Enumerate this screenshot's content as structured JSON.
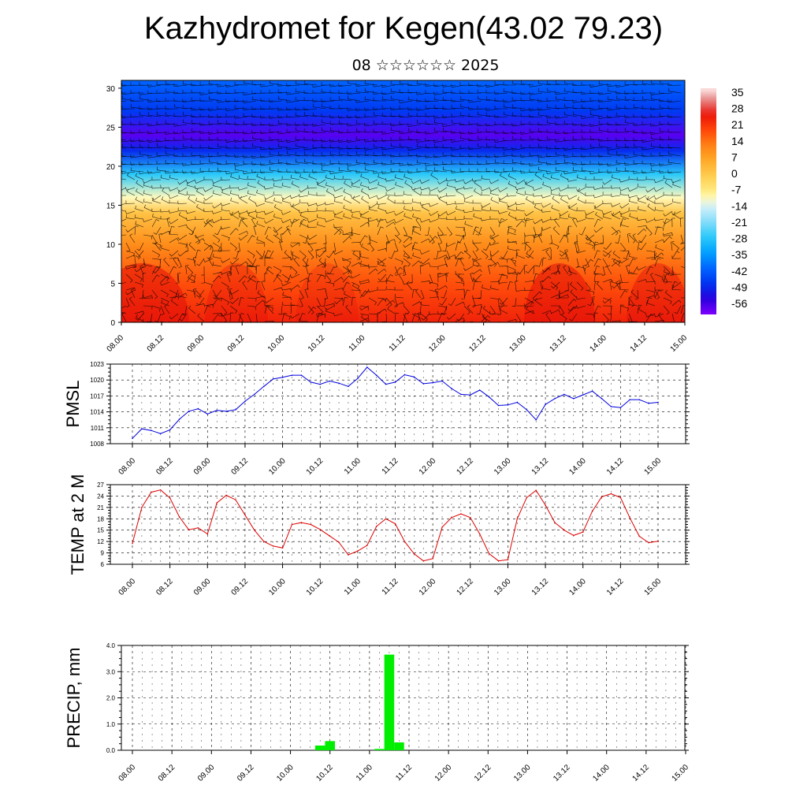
{
  "title": "Kazhydromet for Kegen(43.02 79.23)",
  "subtitle": "08 ☆☆☆☆☆☆ 2025",
  "colors": {
    "pmsl": "#0000dd",
    "temp": "#dd0000",
    "precip": "#00ee00"
  },
  "chart_data": [
    {
      "type": "heatmap",
      "name": "cross-section temperature with wind barbs",
      "x_ticks": [
        "08.00",
        "08.12",
        "09.00",
        "09.12",
        "10.00",
        "10.12",
        "11.00",
        "11.12",
        "12.00",
        "12.12",
        "13.00",
        "13.12",
        "14.00",
        "14.12",
        "15.00"
      ],
      "y_ticks": [
        "0",
        "5",
        "10",
        "15",
        "20",
        "25",
        "30"
      ],
      "ylim": [
        0,
        31
      ],
      "colorbar_labels": [
        "35",
        "28",
        "21",
        "14",
        "7",
        "0",
        "-7",
        "-14",
        "-21",
        "-28",
        "-35",
        "-42",
        "-49",
        "-56"
      ],
      "colorbar_range": [
        -63,
        40
      ],
      "temperature_profile": [
        {
          "level": 0,
          "value": 26
        },
        {
          "level": 5,
          "value": 20
        },
        {
          "level": 10,
          "value": 12
        },
        {
          "level": 14,
          "value": 2
        },
        {
          "level": 16,
          "value": -10
        },
        {
          "level": 19,
          "value": -28
        },
        {
          "level": 22,
          "value": -50
        },
        {
          "level": 24,
          "value": -60
        },
        {
          "level": 27,
          "value": -48
        },
        {
          "level": 31,
          "value": -42
        }
      ]
    },
    {
      "type": "line",
      "ylabel": "PMSL",
      "x_ticks": [
        "08.00",
        "08.12",
        "09.00",
        "09.12",
        "10.00",
        "10.12",
        "11.00",
        "11.12",
        "12.00",
        "12.12",
        "13.00",
        "13.12",
        "14.00",
        "14.12",
        "15.00"
      ],
      "y_ticks": [
        "1008",
        "1011",
        "1014",
        "1017",
        "1020",
        "1023"
      ],
      "ylim": [
        1008,
        1023
      ],
      "step_hours": 3,
      "values": [
        1009,
        1010.8,
        1010.5,
        1009.9,
        1010.6,
        1012.6,
        1014.1,
        1014.6,
        1013.6,
        1014.3,
        1014.1,
        1014.4,
        1016,
        1017.3,
        1018.8,
        1020.2,
        1020.5,
        1020.9,
        1020.9,
        1019.6,
        1019.2,
        1019.8,
        1019.4,
        1018.8,
        1020.3,
        1022.4,
        1020.9,
        1019.2,
        1019.6,
        1021,
        1020.6,
        1019.3,
        1019.5,
        1019.8,
        1018.4,
        1017.3,
        1017.2,
        1018.1,
        1016.8,
        1015.2,
        1015.3,
        1015.8,
        1014.4,
        1012.5,
        1015.4,
        1016.5,
        1017.3,
        1016.5,
        1017.2,
        1017.9,
        1016.5,
        1015,
        1014.8,
        1016.3,
        1016.3,
        1015.6,
        1015.8
      ]
    },
    {
      "type": "line",
      "ylabel": "TEMP at 2 M",
      "x_ticks": [
        "08.00",
        "08.12",
        "09.00",
        "09.12",
        "10.00",
        "10.12",
        "11.00",
        "11.12",
        "12.00",
        "12.12",
        "13.00",
        "13.12",
        "14.00",
        "14.12",
        "15.00"
      ],
      "y_ticks": [
        "6",
        "9",
        "12",
        "15",
        "18",
        "21",
        "24",
        "27"
      ],
      "ylim": [
        6,
        27
      ],
      "step_hours": 3,
      "values": [
        11.5,
        21,
        25,
        25.6,
        23.5,
        18.5,
        15.1,
        15.6,
        14,
        22.2,
        24.2,
        23,
        19,
        15,
        12,
        10.8,
        10.3,
        16.5,
        17,
        16.5,
        15.2,
        13.5,
        11.8,
        8.5,
        9.5,
        11,
        16,
        18,
        16.7,
        12,
        8.8,
        6.9,
        7.5,
        15.8,
        18.3,
        19.3,
        18.3,
        14,
        8.8,
        6.9,
        7.2,
        18,
        23.6,
        25.5,
        21.6,
        17,
        15,
        13.6,
        14.5,
        20,
        23.8,
        24.6,
        23.6,
        18.2,
        13.4,
        11.7,
        12.1
      ]
    },
    {
      "type": "bar",
      "ylabel": "PRECIP, mm",
      "x_ticks": [
        "08.00",
        "08.12",
        "09.00",
        "09.12",
        "10.00",
        "10.12",
        "11.00",
        "11.12",
        "12.00",
        "12.12",
        "13.00",
        "13.12",
        "14.00",
        "14.12",
        "15.00"
      ],
      "y_ticks": [
        "0.0",
        "1.0",
        "2.0",
        "3.0",
        "4.0"
      ],
      "ylim": [
        0,
        4
      ],
      "step_hours": 3,
      "values": [
        0,
        0,
        0,
        0,
        0,
        0,
        0,
        0,
        0,
        0,
        0,
        0,
        0,
        0,
        0,
        0,
        0,
        0,
        0,
        0.18,
        0.35,
        0,
        0,
        0,
        0,
        0.05,
        3.65,
        0.3,
        0,
        0,
        0,
        0,
        0,
        0,
        0,
        0,
        0,
        0,
        0,
        0,
        0,
        0,
        0,
        0,
        0,
        0,
        0,
        0,
        0,
        0,
        0,
        0,
        0,
        0,
        0,
        0
      ]
    }
  ]
}
